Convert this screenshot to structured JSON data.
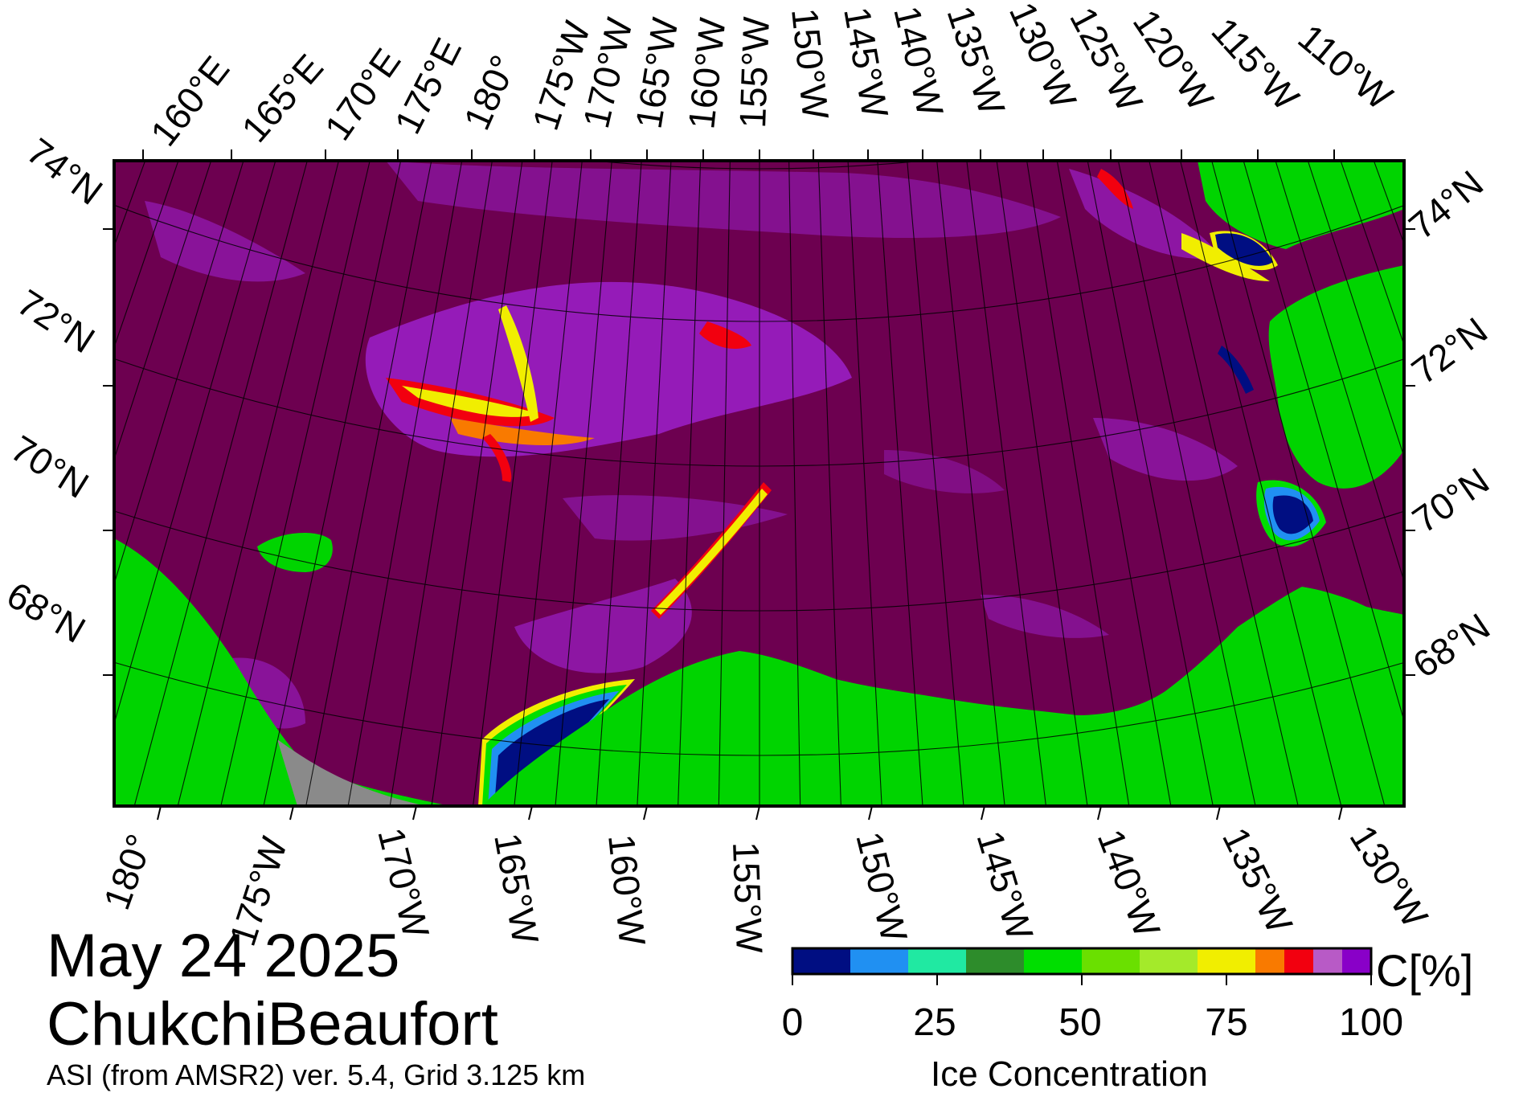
{
  "date": "May 24 2025",
  "region": "ChukchiBeaufort",
  "source": "ASI (from AMSR2) ver. 5.4,  Grid 3.125 km",
  "colorbar": {
    "title": "Ice Concentration",
    "unit": "C[%]",
    "ticks": [
      "0",
      "25",
      "50",
      "75",
      "100"
    ],
    "colors": [
      "#000e82",
      "#2090f2",
      "#20e9a2",
      "#2d8c2b",
      "#00de00",
      "#6ae000",
      "#a4ea2a",
      "#f1ee00",
      "#f97a00",
      "#f2000f",
      "#b85ac6",
      "#8900c8"
    ]
  },
  "map": {
    "ocean_color": "#6d0050",
    "land_color": "#00d400",
    "nodata_color": "#8a8a8a",
    "top_longitudes": [
      "160°E",
      "165°E",
      "170°E",
      "175°E",
      "180°",
      "175°W",
      "170°W",
      "165°W",
      "160°W",
      "155°W",
      "150°W",
      "145°W",
      "140°W",
      "135°W",
      "130°W",
      "125°W",
      "120°W",
      "115°W",
      "110°W"
    ],
    "bottom_longitudes": [
      "180°",
      "175°W",
      "170°W",
      "165°W",
      "160°W",
      "155°W",
      "150°W",
      "145°W",
      "140°W",
      "135°W",
      "130°W"
    ],
    "left_latitudes": [
      "74°N",
      "72°N",
      "70°N",
      "68°N"
    ],
    "right_latitudes": [
      "74°N",
      "72°N",
      "70°N",
      "68°N"
    ]
  }
}
